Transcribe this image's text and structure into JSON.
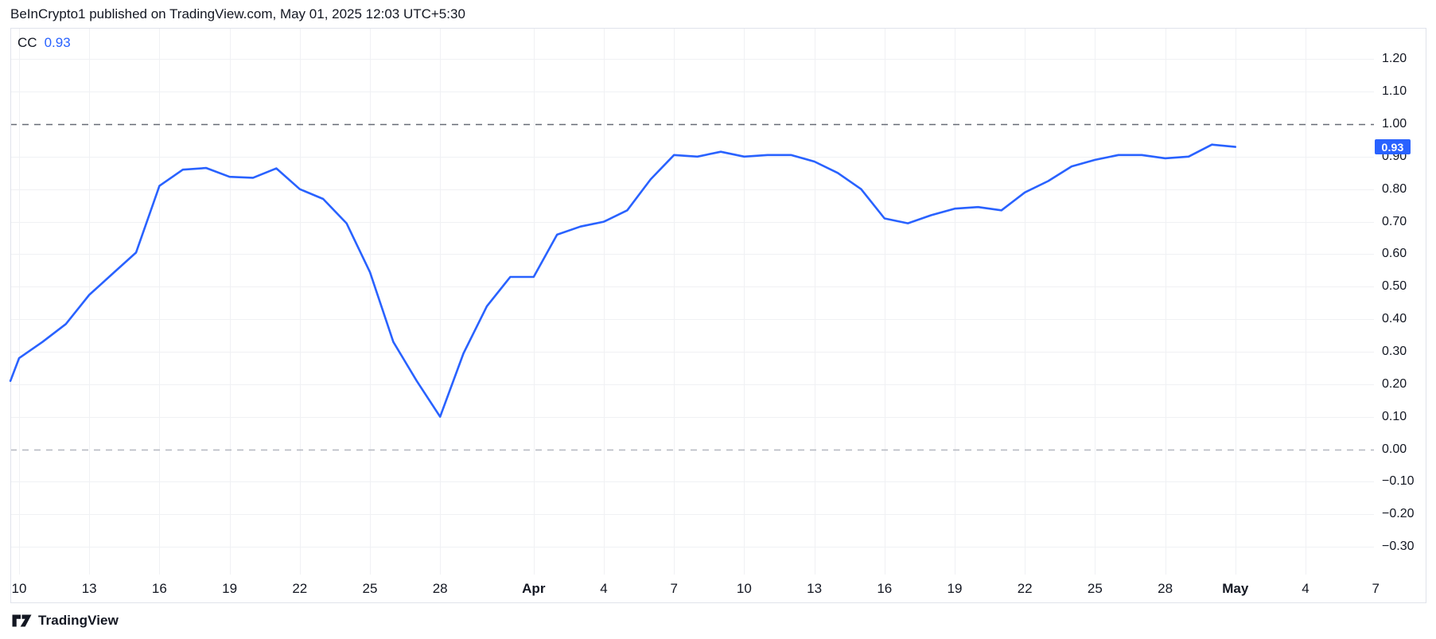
{
  "header": {
    "attribution": "BeInCrypto1 published on TradingView.com, May 01, 2025 12:03 UTC+5:30"
  },
  "legend": {
    "indicator": "CC",
    "value": "0.93"
  },
  "price_scale": {
    "badge_value": "0.93"
  },
  "footer": {
    "brand": "TradingView"
  },
  "colors": {
    "line": "#2962ff",
    "grid": "#f0f1f4",
    "border": "#e0e3eb",
    "dash_dark": "#676b76",
    "dash_light": "#b4b7bf",
    "text": "#131722",
    "badge_bg": "#2962ff",
    "badge_text": "#ffffff"
  },
  "chart_data": {
    "type": "line",
    "series_name": "CC",
    "legend_position": "top-left",
    "grid": true,
    "x_axis": {
      "unit": "day",
      "tick_labels": [
        {
          "d": 0,
          "label": "10"
        },
        {
          "d": 3,
          "label": "13"
        },
        {
          "d": 6,
          "label": "16"
        },
        {
          "d": 9,
          "label": "19"
        },
        {
          "d": 12,
          "label": "22"
        },
        {
          "d": 15,
          "label": "25"
        },
        {
          "d": 18,
          "label": "28"
        },
        {
          "d": 22,
          "label": "Apr",
          "bold": true
        },
        {
          "d": 25,
          "label": "4"
        },
        {
          "d": 28,
          "label": "7"
        },
        {
          "d": 31,
          "label": "10"
        },
        {
          "d": 34,
          "label": "13"
        },
        {
          "d": 37,
          "label": "16"
        },
        {
          "d": 40,
          "label": "19"
        },
        {
          "d": 43,
          "label": "22"
        },
        {
          "d": 46,
          "label": "25"
        },
        {
          "d": 49,
          "label": "28"
        },
        {
          "d": 52,
          "label": "May",
          "bold": true
        },
        {
          "d": 55,
          "label": "4"
        },
        {
          "d": 58,
          "label": "7"
        }
      ]
    },
    "y_axis": {
      "range": [
        -0.35,
        1.27
      ],
      "tick_labels": [
        {
          "v": 1.2,
          "label": "1.20"
        },
        {
          "v": 1.1,
          "label": "1.10"
        },
        {
          "v": 1.0,
          "label": "1.00"
        },
        {
          "v": 0.9,
          "label": "0.90"
        },
        {
          "v": 0.8,
          "label": "0.80"
        },
        {
          "v": 0.7,
          "label": "0.70"
        },
        {
          "v": 0.6,
          "label": "0.60"
        },
        {
          "v": 0.5,
          "label": "0.50"
        },
        {
          "v": 0.4,
          "label": "0.40"
        },
        {
          "v": 0.3,
          "label": "0.30"
        },
        {
          "v": 0.2,
          "label": "0.20"
        },
        {
          "v": 0.1,
          "label": "0.10"
        },
        {
          "v": 0.0,
          "label": "0.00"
        },
        {
          "v": -0.1,
          "label": "−0.10"
        },
        {
          "v": -0.2,
          "label": "−0.20"
        },
        {
          "v": -0.3,
          "label": "−0.30"
        }
      ]
    },
    "reference_lines": [
      {
        "value": 1.0,
        "style": "dashed",
        "tone": "dark"
      },
      {
        "value": 0.0,
        "style": "dashed",
        "tone": "light"
      }
    ],
    "series": [
      {
        "name": "CC",
        "color": "#2962ff",
        "last_value": 0.93,
        "points": [
          [
            -0.37,
            0.21
          ],
          [
            0,
            0.28
          ],
          [
            1,
            0.33
          ],
          [
            2,
            0.385
          ],
          [
            3,
            0.475
          ],
          [
            4,
            0.54
          ],
          [
            5,
            0.605
          ],
          [
            6,
            0.81
          ],
          [
            7,
            0.86
          ],
          [
            8,
            0.865
          ],
          [
            9,
            0.838
          ],
          [
            10,
            0.835
          ],
          [
            11,
            0.864
          ],
          [
            12,
            0.8
          ],
          [
            13,
            0.77
          ],
          [
            14,
            0.695
          ],
          [
            15,
            0.545
          ],
          [
            16,
            0.33
          ],
          [
            17,
            0.21
          ],
          [
            18,
            0.1
          ],
          [
            19,
            0.295
          ],
          [
            20,
            0.44
          ],
          [
            21,
            0.53
          ],
          [
            22,
            0.53
          ],
          [
            23,
            0.66
          ],
          [
            24,
            0.685
          ],
          [
            25,
            0.7
          ],
          [
            26,
            0.735
          ],
          [
            27,
            0.83
          ],
          [
            28,
            0.905
          ],
          [
            29,
            0.9
          ],
          [
            30,
            0.915
          ],
          [
            31,
            0.9
          ],
          [
            32,
            0.905
          ],
          [
            33,
            0.905
          ],
          [
            34,
            0.885
          ],
          [
            35,
            0.85
          ],
          [
            36,
            0.8
          ],
          [
            37,
            0.71
          ],
          [
            38,
            0.695
          ],
          [
            39,
            0.72
          ],
          [
            40,
            0.74
          ],
          [
            41,
            0.745
          ],
          [
            42,
            0.735
          ],
          [
            43,
            0.79
          ],
          [
            44,
            0.825
          ],
          [
            45,
            0.87
          ],
          [
            46,
            0.89
          ],
          [
            47,
            0.905
          ],
          [
            48,
            0.905
          ],
          [
            49,
            0.895
          ],
          [
            50,
            0.9
          ],
          [
            51,
            0.937
          ],
          [
            52,
            0.93
          ]
        ]
      }
    ]
  }
}
